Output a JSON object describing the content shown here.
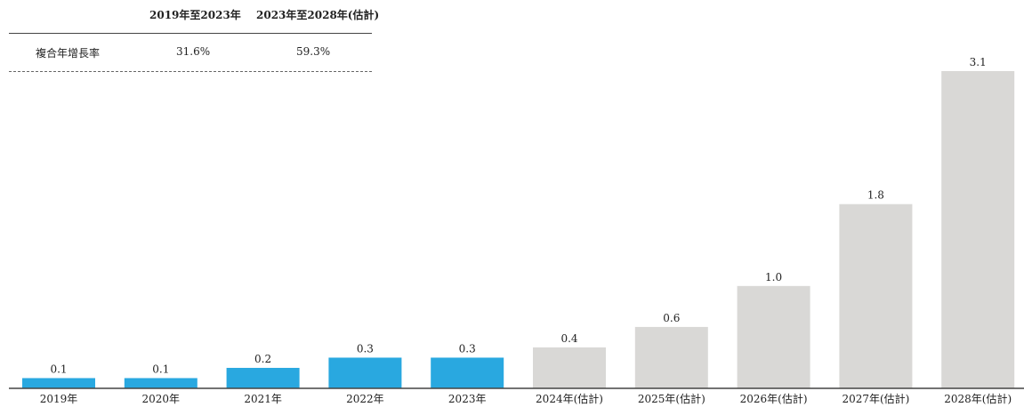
{
  "cagr_table": {
    "col1_header": "2019年至2023年",
    "col2_header": "2023年至2028年(估計)",
    "row_label": "複合年增長率",
    "col1_value": "31.6%",
    "col2_value": "59.3%"
  },
  "chart_data": {
    "type": "bar",
    "categories": [
      "2019年",
      "2020年",
      "2021年",
      "2022年",
      "2023年",
      "2024年(估計)",
      "2025年(估計)",
      "2026年(估計)",
      "2027年(估計)",
      "2028年(估計)"
    ],
    "values": [
      0.1,
      0.1,
      0.2,
      0.3,
      0.3,
      0.4,
      0.6,
      1.0,
      1.8,
      3.1
    ],
    "data_labels": [
      "0.1",
      "0.1",
      "0.2",
      "0.3",
      "0.3",
      "0.4",
      "0.6",
      "1.0",
      "1.8",
      "3.1"
    ],
    "historical_count": 5,
    "colors": {
      "historical": "#29a8e0",
      "forecast": "#d9d8d6",
      "axis": "#444444"
    },
    "ylim": [
      0,
      3.1
    ],
    "grid": false,
    "title": "",
    "xlabel": "",
    "ylabel": ""
  }
}
